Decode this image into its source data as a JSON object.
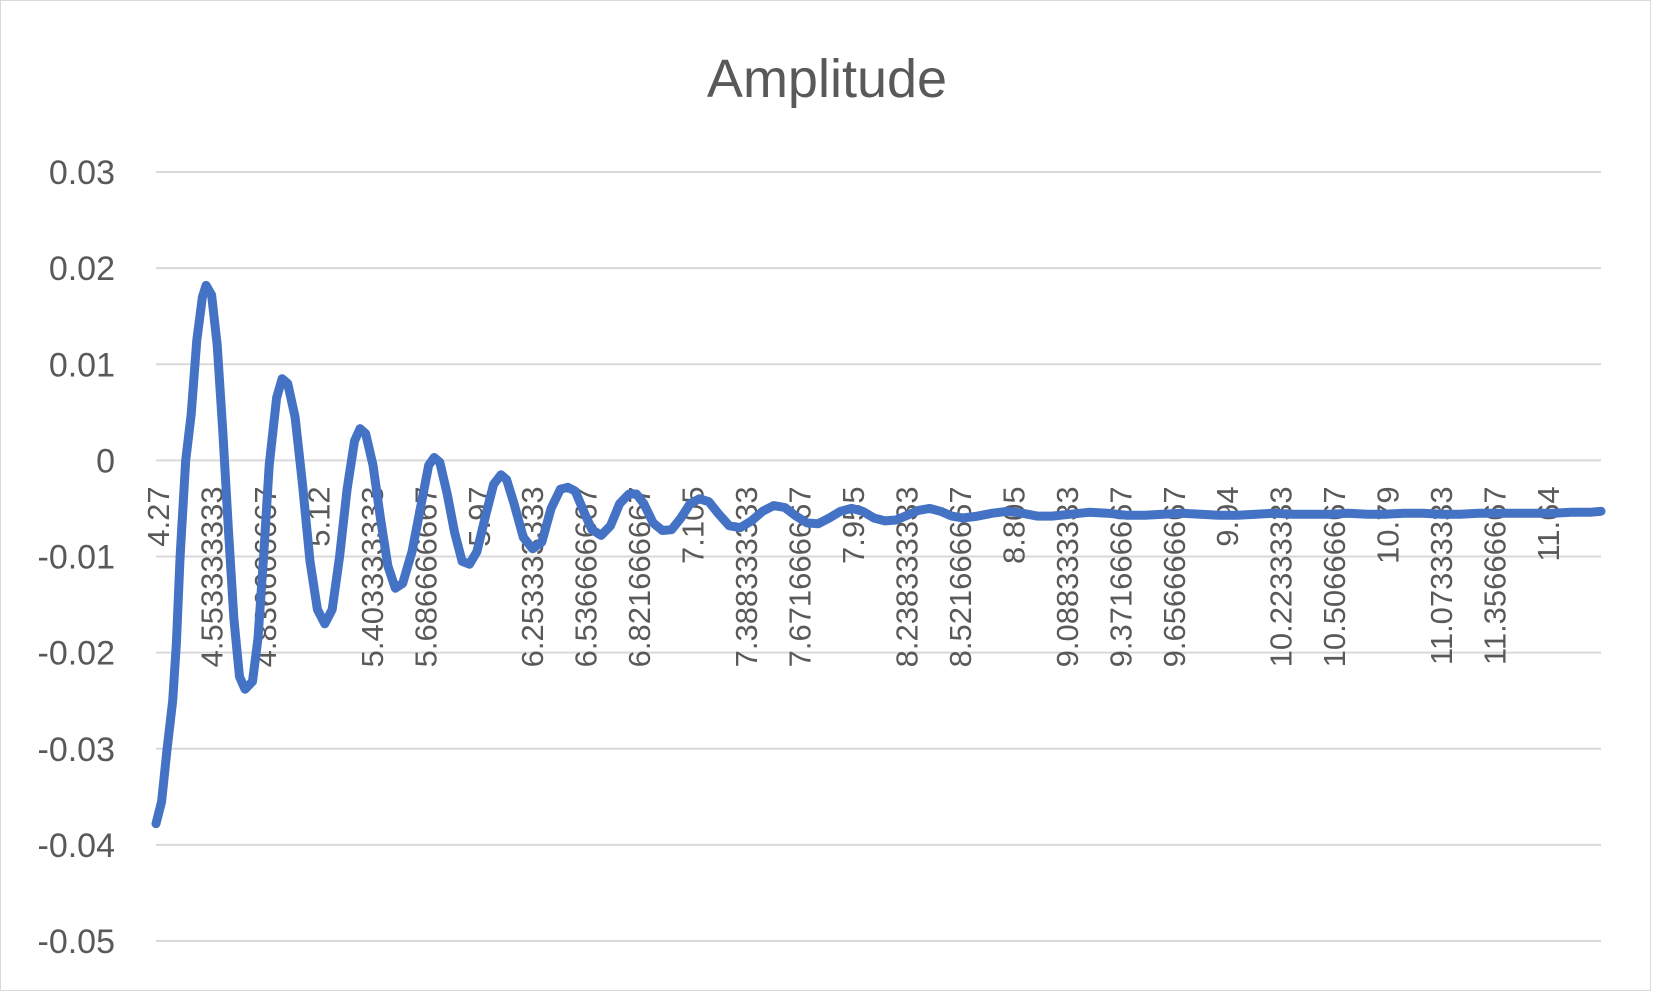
{
  "chart_data": {
    "type": "line",
    "title": "Amplitude",
    "xlabel": "",
    "ylabel": "",
    "ylim": [
      -0.05,
      0.03
    ],
    "yticks": [
      "0.03",
      "0.02",
      "0.01",
      "0",
      "-0.01",
      "-0.02",
      "-0.03",
      "-0.04",
      "-0.05"
    ],
    "ytick_values": [
      0.03,
      0.02,
      0.01,
      0,
      -0.01,
      -0.02,
      -0.03,
      -0.04,
      -0.05
    ],
    "xlim": [
      4.27,
      12.06
    ],
    "x_tick_labels": [
      "4.27",
      "4.553333333",
      "4.836666667",
      "5.12",
      "5.403333333",
      "5.686666667",
      "5.97",
      "6.253333333",
      "6.536666667",
      "6.821666667",
      "7.105",
      "7.388333333",
      "7.671666667",
      "7.955",
      "8.238333333",
      "8.521666667",
      "8.805",
      "9.088333333",
      "9.371666667",
      "9.656666667",
      "9.94",
      "10.22333333",
      "10.50666667",
      "10.79",
      "11.07333333",
      "11.35666667",
      "11.64"
    ],
    "grid": true,
    "legend": "none",
    "series": [
      {
        "color": "#4472c4",
        "points": [
          [
            4.27,
            -0.0378
          ],
          [
            4.3,
            -0.0355
          ],
          [
            4.33,
            -0.03
          ],
          [
            4.36,
            -0.025
          ],
          [
            4.38,
            -0.019
          ],
          [
            4.4,
            -0.01
          ],
          [
            4.43,
            0.0
          ],
          [
            4.46,
            0.0048
          ],
          [
            4.49,
            0.0125
          ],
          [
            4.52,
            0.017
          ],
          [
            4.54,
            0.0182
          ],
          [
            4.57,
            0.0172
          ],
          [
            4.6,
            0.012
          ],
          [
            4.63,
            0.003
          ],
          [
            4.66,
            -0.007
          ],
          [
            4.69,
            -0.0165
          ],
          [
            4.72,
            -0.0225
          ],
          [
            4.75,
            -0.0238
          ],
          [
            4.79,
            -0.023
          ],
          [
            4.82,
            -0.0185
          ],
          [
            4.85,
            -0.01
          ],
          [
            4.88,
            -0.0005
          ],
          [
            4.92,
            0.0065
          ],
          [
            4.95,
            0.0085
          ],
          [
            4.98,
            0.008
          ],
          [
            5.02,
            0.0045
          ],
          [
            5.06,
            -0.0025
          ],
          [
            5.1,
            -0.0105
          ],
          [
            5.14,
            -0.0155
          ],
          [
            5.18,
            -0.017
          ],
          [
            5.22,
            -0.0155
          ],
          [
            5.26,
            -0.01
          ],
          [
            5.3,
            -0.003
          ],
          [
            5.34,
            0.002
          ],
          [
            5.37,
            0.0033
          ],
          [
            5.4,
            0.0028
          ],
          [
            5.44,
            -0.0005
          ],
          [
            5.48,
            -0.006
          ],
          [
            5.52,
            -0.011
          ],
          [
            5.56,
            -0.0133
          ],
          [
            5.6,
            -0.0128
          ],
          [
            5.65,
            -0.0095
          ],
          [
            5.7,
            -0.0045
          ],
          [
            5.74,
            -0.0005
          ],
          [
            5.77,
            0.0003
          ],
          [
            5.8,
            -0.0002
          ],
          [
            5.84,
            -0.0035
          ],
          [
            5.88,
            -0.0075
          ],
          [
            5.92,
            -0.0105
          ],
          [
            5.96,
            -0.0108
          ],
          [
            6.0,
            -0.0095
          ],
          [
            6.05,
            -0.0055
          ],
          [
            6.09,
            -0.0025
          ],
          [
            6.13,
            -0.0015
          ],
          [
            6.16,
            -0.002
          ],
          [
            6.2,
            -0.0045
          ],
          [
            6.25,
            -0.008
          ],
          [
            6.3,
            -0.0092
          ],
          [
            6.35,
            -0.0085
          ],
          [
            6.4,
            -0.005
          ],
          [
            6.45,
            -0.003
          ],
          [
            6.49,
            -0.0028
          ],
          [
            6.53,
            -0.0032
          ],
          [
            6.58,
            -0.0055
          ],
          [
            6.62,
            -0.0072
          ],
          [
            6.67,
            -0.0078
          ],
          [
            6.72,
            -0.0068
          ],
          [
            6.77,
            -0.0045
          ],
          [
            6.82,
            -0.0035
          ],
          [
            6.86,
            -0.0035
          ],
          [
            6.9,
            -0.0045
          ],
          [
            6.95,
            -0.0065
          ],
          [
            7.0,
            -0.0073
          ],
          [
            7.05,
            -0.0072
          ],
          [
            7.1,
            -0.006
          ],
          [
            7.15,
            -0.0045
          ],
          [
            7.2,
            -0.004
          ],
          [
            7.25,
            -0.0043
          ],
          [
            7.3,
            -0.0055
          ],
          [
            7.36,
            -0.0068
          ],
          [
            7.42,
            -0.007
          ],
          [
            7.48,
            -0.0063
          ],
          [
            7.54,
            -0.0053
          ],
          [
            7.6,
            -0.0047
          ],
          [
            7.66,
            -0.0049
          ],
          [
            7.72,
            -0.0058
          ],
          [
            7.78,
            -0.0065
          ],
          [
            7.84,
            -0.0066
          ],
          [
            7.9,
            -0.006
          ],
          [
            7.96,
            -0.0053
          ],
          [
            8.02,
            -0.005
          ],
          [
            8.08,
            -0.0053
          ],
          [
            8.14,
            -0.006
          ],
          [
            8.2,
            -0.0063
          ],
          [
            8.26,
            -0.0062
          ],
          [
            8.32,
            -0.0057
          ],
          [
            8.38,
            -0.0052
          ],
          [
            8.44,
            -0.005
          ],
          [
            8.5,
            -0.0053
          ],
          [
            8.56,
            -0.0058
          ],
          [
            8.62,
            -0.006
          ],
          [
            8.7,
            -0.0058
          ],
          [
            8.78,
            -0.0055
          ],
          [
            8.86,
            -0.0053
          ],
          [
            8.94,
            -0.0055
          ],
          [
            9.02,
            -0.0058
          ],
          [
            9.1,
            -0.0058
          ],
          [
            9.2,
            -0.0056
          ],
          [
            9.3,
            -0.0054
          ],
          [
            9.4,
            -0.0055
          ],
          [
            9.5,
            -0.0057
          ],
          [
            9.6,
            -0.0057
          ],
          [
            9.7,
            -0.0056
          ],
          [
            9.8,
            -0.0055
          ],
          [
            9.9,
            -0.0056
          ],
          [
            10.0,
            -0.0057
          ],
          [
            10.1,
            -0.0057
          ],
          [
            10.2,
            -0.0056
          ],
          [
            10.3,
            -0.0055
          ],
          [
            10.4,
            -0.0056
          ],
          [
            10.5,
            -0.0056
          ],
          [
            10.6,
            -0.0056
          ],
          [
            10.7,
            -0.0055
          ],
          [
            10.8,
            -0.0056
          ],
          [
            10.9,
            -0.0056
          ],
          [
            11.0,
            -0.0055
          ],
          [
            11.1,
            -0.0055
          ],
          [
            11.2,
            -0.0056
          ],
          [
            11.3,
            -0.0056
          ],
          [
            11.4,
            -0.0055
          ],
          [
            11.5,
            -0.0055
          ],
          [
            11.6,
            -0.0055
          ],
          [
            11.7,
            -0.0055
          ],
          [
            11.8,
            -0.0055
          ],
          [
            11.9,
            -0.0054
          ],
          [
            12.0,
            -0.0054
          ],
          [
            12.06,
            -0.0053
          ]
        ]
      }
    ]
  }
}
